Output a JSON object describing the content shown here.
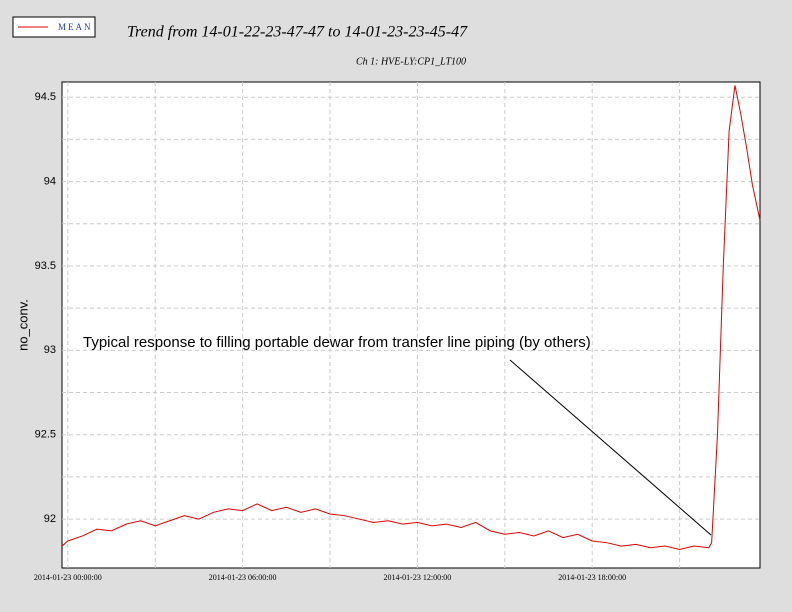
{
  "chart_data": {
    "type": "line",
    "title": "Trend from 14-01-22-23-47-47 to 14-01-23-23-45-47",
    "subtitle": "Ch 1: HVE-LY:CP1_LT100",
    "ylabel": "no_conv.",
    "annotation": "Typical response to filling portable dewar from transfer line piping (by others)",
    "legend": "top-left",
    "grid": true,
    "xlim": [
      -0.2,
      23.76
    ],
    "ylim": [
      91.71,
      94.59
    ],
    "xticks": [
      {
        "value": 0,
        "label": "2014-01-23 00:00:00"
      },
      {
        "value": 6,
        "label": "2014-01-23 06:00:00"
      },
      {
        "value": 12,
        "label": "2014-01-23 12:00:00"
      },
      {
        "value": 18,
        "label": "2014-01-23 18:00:00"
      }
    ],
    "xminorticks": [
      3,
      9,
      15,
      21
    ],
    "yticks": [
      92,
      92.5,
      93,
      93.5,
      94,
      94.5
    ],
    "yminorticks": [
      92.25,
      92.75,
      93.25,
      93.75,
      94.25
    ],
    "x": [
      -0.2,
      0,
      0.5,
      1,
      1.5,
      2,
      2.5,
      3,
      3.5,
      4,
      4.5,
      5,
      5.5,
      6,
      6.5,
      7,
      7.5,
      8,
      8.5,
      9,
      9.5,
      10,
      10.5,
      11,
      11.5,
      12,
      12.5,
      13,
      13.5,
      14,
      14.5,
      15,
      15.5,
      16,
      16.5,
      17,
      17.5,
      18,
      18.5,
      19,
      19.5,
      20,
      20.5,
      21,
      21.5,
      22,
      22.1,
      22.3,
      22.5,
      22.7,
      22.9,
      23.1,
      23.3,
      23.5,
      23.76
    ],
    "series": [
      {
        "name": "MEAN",
        "color": "#e00000",
        "values": [
          91.84,
          91.87,
          91.9,
          91.94,
          91.93,
          91.97,
          91.99,
          91.96,
          91.99,
          92.02,
          92.0,
          92.04,
          92.06,
          92.05,
          92.09,
          92.05,
          92.07,
          92.04,
          92.06,
          92.03,
          92.02,
          92.0,
          91.98,
          91.99,
          91.97,
          91.98,
          91.96,
          91.97,
          91.95,
          91.98,
          91.93,
          91.91,
          91.92,
          91.9,
          91.93,
          91.89,
          91.91,
          91.87,
          91.86,
          91.84,
          91.85,
          91.83,
          91.84,
          91.82,
          91.84,
          91.83,
          91.86,
          92.5,
          93.5,
          94.3,
          94.57,
          94.4,
          94.2,
          93.98,
          93.77
        ]
      }
    ]
  }
}
